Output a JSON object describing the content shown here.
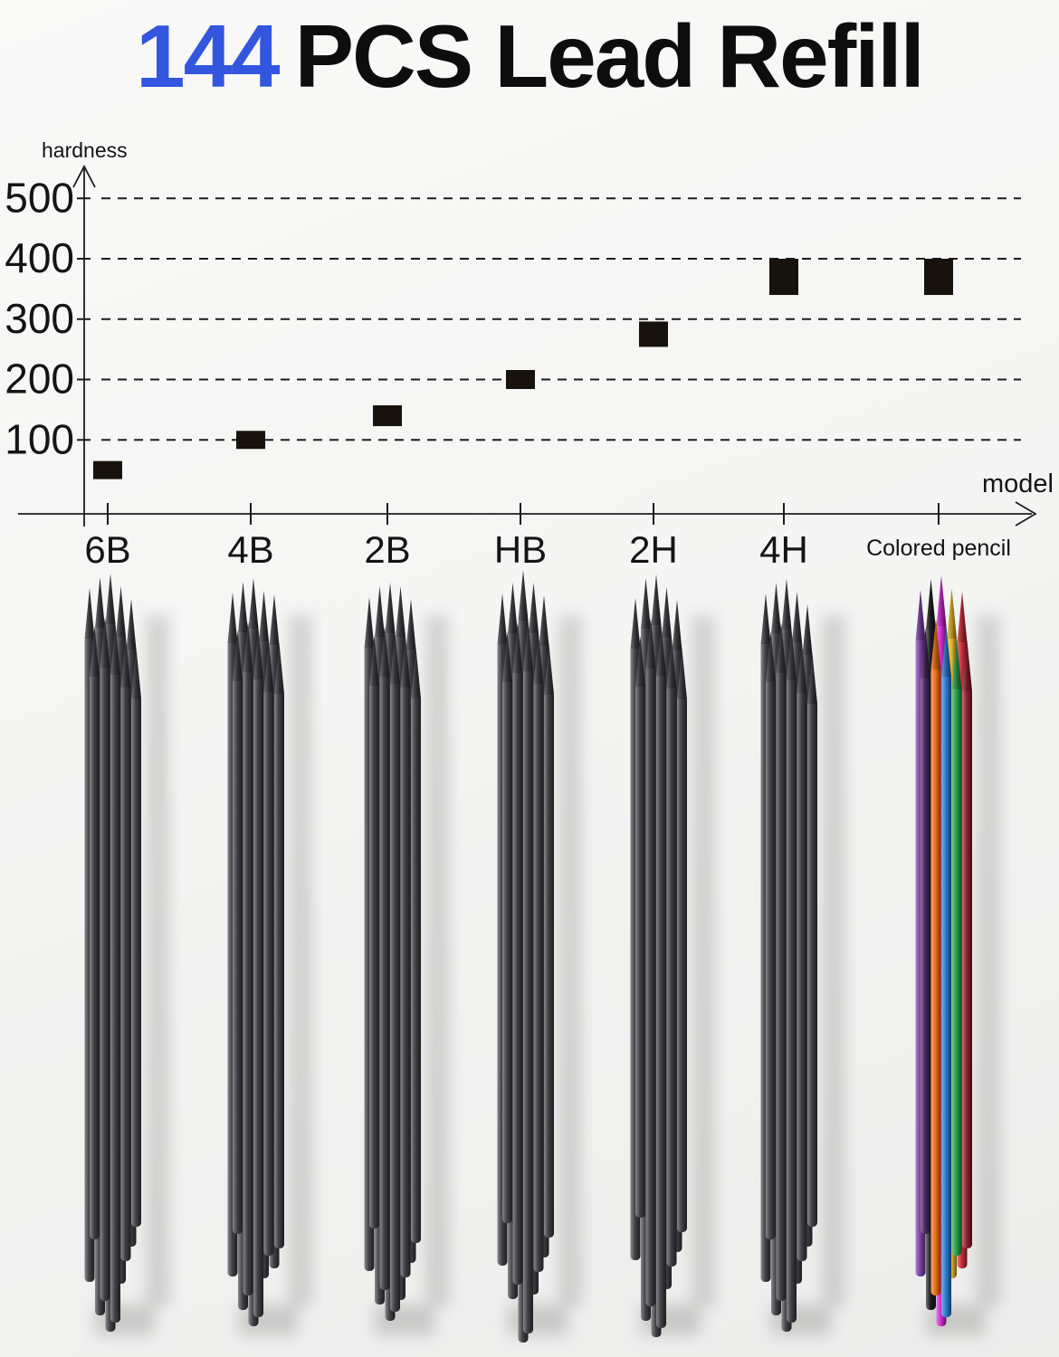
{
  "title": {
    "highlight": "144",
    "text": "PCS Lead Refill",
    "highlight_color": "#3356de"
  },
  "chart_data": {
    "type": "scatter",
    "title": "",
    "ylabel": "hardness",
    "xlabel": "model",
    "categories": [
      "6B",
      "4B",
      "2B",
      "HB",
      "2H",
      "4H",
      "Colored pencil"
    ],
    "values": [
      50,
      100,
      140,
      200,
      275,
      370,
      370
    ],
    "yticks": [
      100,
      200,
      300,
      400,
      500
    ],
    "ylim": [
      0,
      560
    ],
    "grid": "horizontal-dashed",
    "legend": "none",
    "marker_style": "black-rectangle"
  },
  "bundles": [
    {
      "model": "6B",
      "kind": "graphite"
    },
    {
      "model": "4B",
      "kind": "graphite"
    },
    {
      "model": "2B",
      "kind": "graphite"
    },
    {
      "model": "HB",
      "kind": "graphite"
    },
    {
      "model": "2H",
      "kind": "graphite"
    },
    {
      "model": "4H",
      "kind": "graphite"
    },
    {
      "model": "Colored pencil",
      "kind": "colored",
      "colors": [
        "#7a3fa5",
        "#1d1d22",
        "#cf2bd1",
        "#e6bb2a",
        "#cc2c38",
        "#45285e",
        "#ef7012",
        "#2d7dd2",
        "#2aa24c",
        "#8e1f2e"
      ]
    }
  ],
  "colors": {
    "background": "#f6f6f5",
    "accent_blue": "#3356de",
    "axis": "#1c1c1c",
    "marker": "#17130c",
    "graphite": "#404046"
  }
}
